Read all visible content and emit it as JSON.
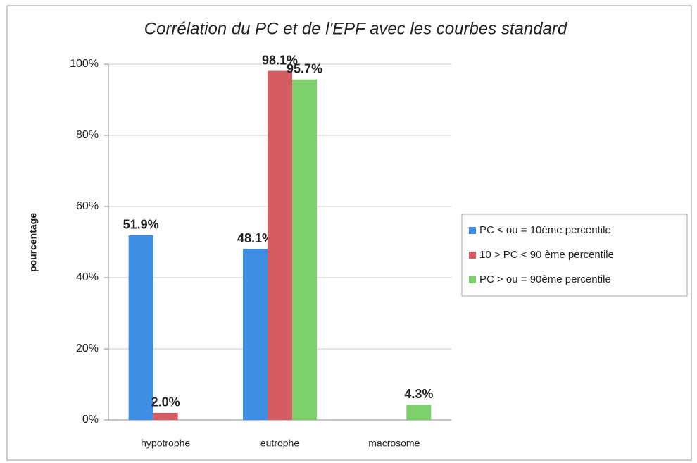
{
  "chart_data": {
    "type": "bar",
    "title": "Corrélation du PC et de l'EPF avec les courbes standard",
    "ylabel": "pourcentage",
    "categories": [
      "hypotrophe",
      "eutrophe",
      "macrosome"
    ],
    "series": [
      {
        "name": "PC < ou = 10ème percentile",
        "color": "#3d8ee4",
        "values": [
          51.9,
          48.1,
          null
        ],
        "value_labels": [
          "51.9%",
          "48.1%",
          null
        ]
      },
      {
        "name": "10 > PC < 90 ème percentile",
        "color": "#d45c62",
        "values": [
          2.0,
          98.1,
          null
        ],
        "value_labels": [
          "2.0%",
          "98.1%",
          null
        ]
      },
      {
        "name": "PC > ou = 90ème percentile",
        "color": "#7ed06c",
        "values": [
          null,
          95.7,
          4.3
        ],
        "value_labels": [
          null,
          "95.7%",
          "4.3%"
        ]
      }
    ],
    "ylim": [
      0,
      100
    ],
    "yticks": [
      {
        "value": 0,
        "label": "0%"
      },
      {
        "value": 20,
        "label": "20%"
      },
      {
        "value": 40,
        "label": "40%"
      },
      {
        "value": 60,
        "label": "60%"
      },
      {
        "value": 80,
        "label": "80%"
      },
      {
        "value": 100,
        "label": "100%"
      }
    ],
    "grid": true,
    "legend": "right"
  }
}
